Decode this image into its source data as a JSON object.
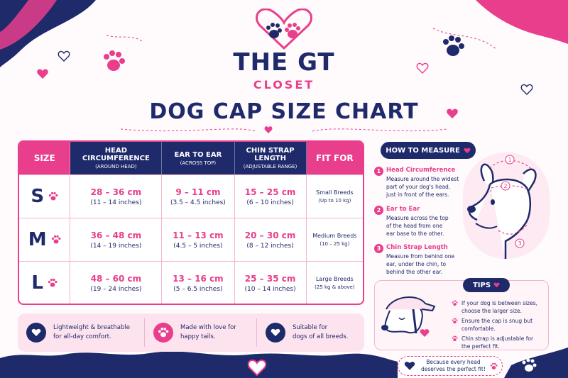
{
  "brand": {
    "name": "THE GT",
    "sub": "CLOSET"
  },
  "title": "DOG CAP SIZE CHART",
  "table": {
    "headers": [
      {
        "l1": "SIZE",
        "l2": ""
      },
      {
        "l1": "HEAD CIRCUMFERENCE",
        "l2": "(AROUND HEAD)"
      },
      {
        "l1": "EAR TO EAR",
        "l2": "(ACROSS TOP)"
      },
      {
        "l1": "CHIN STRAP LENGTH",
        "l2": "(ADJUSTABLE RANGE)"
      },
      {
        "l1": "FIT FOR",
        "l2": ""
      }
    ],
    "rows": [
      {
        "size": "S",
        "head": "28 – 36 cm",
        "head_in": "(11 – 14 inches)",
        "ear": "9 – 11 cm",
        "ear_in": "(3.5 – 4.5 inches)",
        "chin": "15 – 25 cm",
        "chin_in": "(6 – 10 inches)",
        "fit1": "Small Breeds",
        "fit2": "(Up to 10 kg)"
      },
      {
        "size": "M",
        "head": "36 – 48 cm",
        "head_in": "(14 – 19 inches)",
        "ear": "11 – 13 cm",
        "ear_in": "(4.5 – 5 inches)",
        "chin": "20 – 30 cm",
        "chin_in": "(8 – 12 inches)",
        "fit1": "Medium Breeds",
        "fit2": "(10 – 25 kg)"
      },
      {
        "size": "L",
        "head": "48 – 60 cm",
        "head_in": "(19 – 24 inches)",
        "ear": "13 – 16 cm",
        "ear_in": "(5 – 6.5 inches)",
        "chin": "25 – 35 cm",
        "chin_in": "(10 – 14 inches)",
        "fit1": "Large Breeds",
        "fit2": "(25 kg & above)"
      }
    ]
  },
  "features": [
    {
      "l1": "Lightweight & breathable",
      "l2": "for all-day comfort."
    },
    {
      "l1": "Made with love for",
      "l2": "happy tails."
    },
    {
      "l1": "Suitable for",
      "l2": "dogs of all breeds."
    }
  ],
  "howto": {
    "title": "HOW TO MEASURE",
    "steps": [
      {
        "num": "1",
        "title": "Head Circumference",
        "desc": [
          "Measure around the widest",
          "part of your dog's head,",
          "just in front of the ears."
        ]
      },
      {
        "num": "2",
        "title": "Ear to Ear",
        "desc": [
          "Measure across the top",
          "of the head from one",
          "ear base to the other."
        ]
      },
      {
        "num": "3",
        "title": "Chin Strap Length",
        "desc": [
          "Measure from behind one",
          "ear, under the chin, to",
          "behind the other ear."
        ]
      }
    ]
  },
  "tips": {
    "title": "TIPS",
    "items": [
      [
        "If your dog is between sizes,",
        "choose the larger size."
      ],
      [
        "Ensure the cap is snug but",
        "comfortable."
      ],
      [
        "Chin strap is adjustable for",
        "the perfect fit."
      ]
    ]
  },
  "note": [
    "Because every head",
    "deserves the perfect fit!"
  ],
  "colors": {
    "navy": "#1f2a6b",
    "pink": "#e83e8c",
    "light_pink": "#fde3ee"
  },
  "icons": [
    "paw-icon",
    "heart-icon",
    "dog-head-icon"
  ]
}
